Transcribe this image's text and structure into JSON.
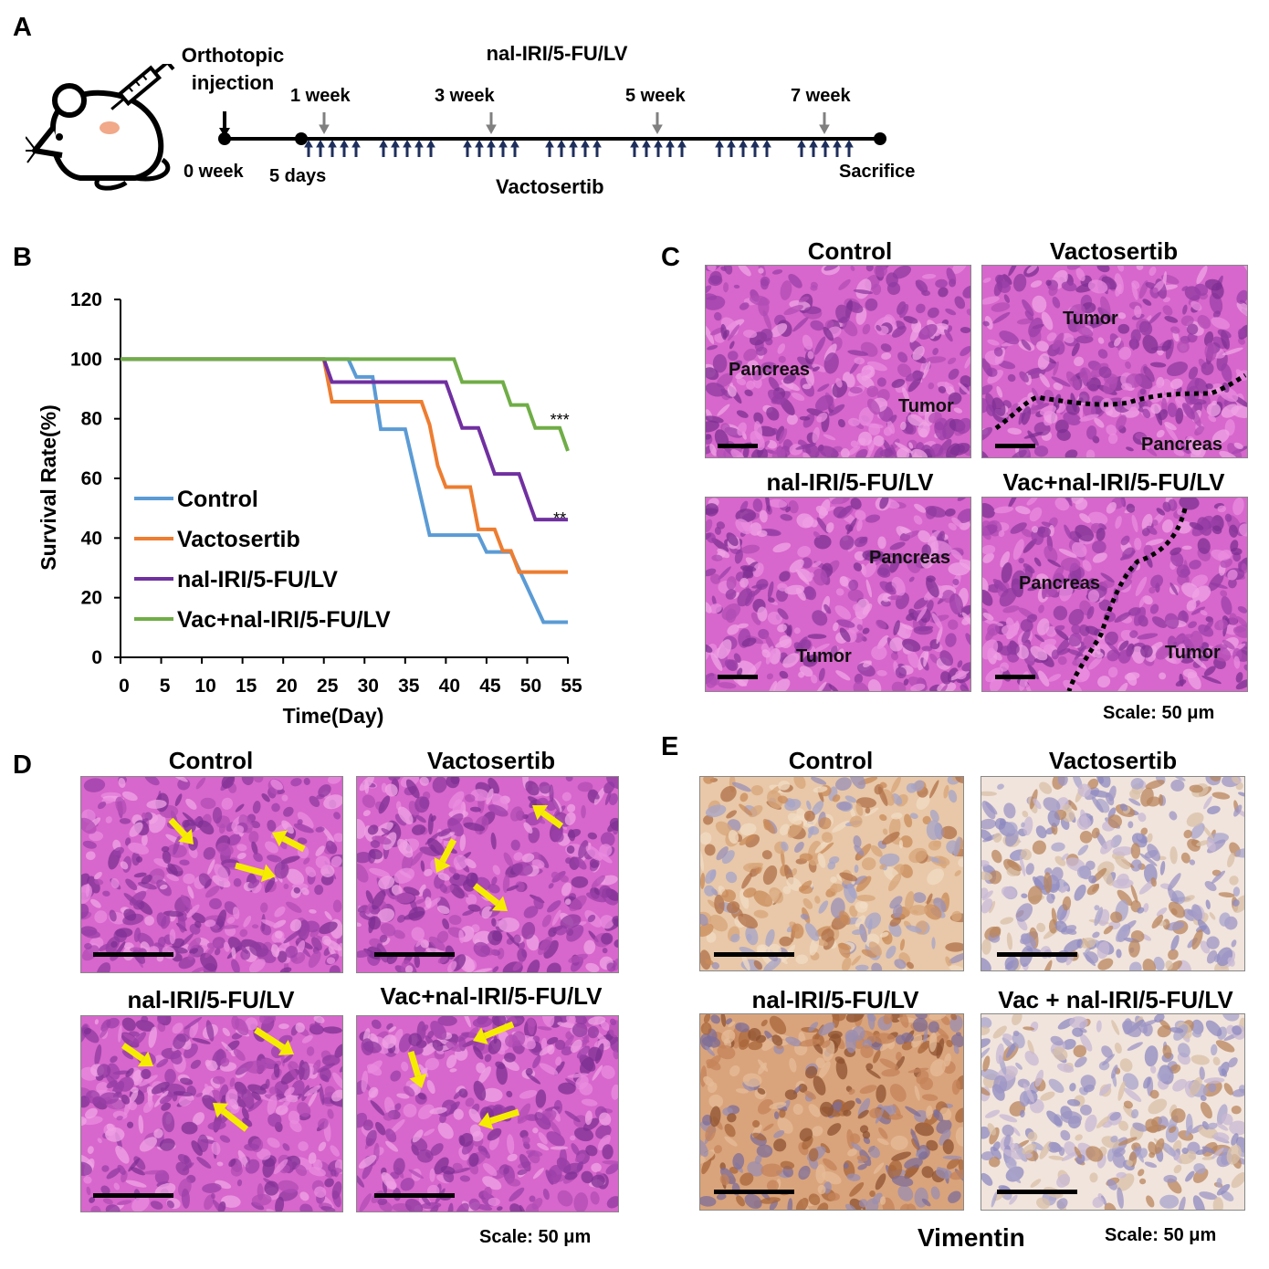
{
  "panels": {
    "A": "A",
    "B": "B",
    "C": "C",
    "D": "D",
    "E": "E"
  },
  "timeline": {
    "orthotopic_label": "Orthotopic\ninjection",
    "treatment_label": "nal-IRI/5-FU/LV",
    "week_labels": [
      "1 week",
      "3 week",
      "5 week",
      "7 week"
    ],
    "start_label": "0 week",
    "day5_label": "5 days",
    "vacto_label": "Vactosertib",
    "end_label": "Sacrifice"
  },
  "chart_data": {
    "type": "line",
    "xlabel": "Time(Day)",
    "ylabel": "Survival Rate(%)",
    "xlim": [
      0,
      55
    ],
    "ylim": [
      0,
      120
    ],
    "xticks": [
      0,
      5,
      10,
      15,
      20,
      25,
      30,
      35,
      40,
      45,
      50,
      55
    ],
    "yticks": [
      0,
      20,
      40,
      60,
      80,
      100,
      120
    ],
    "grid": false,
    "legend_position": "bottom-left",
    "series": [
      {
        "name": "Control",
        "color": "#5b9bd5",
        "x": [
          0,
          28,
          29,
          31,
          32,
          35,
          38,
          39,
          44,
          45,
          48,
          52,
          55
        ],
        "y": [
          100,
          100,
          94,
          94,
          76.5,
          76.5,
          41,
          41,
          41,
          35.3,
          35.3,
          11.8,
          11.8
        ]
      },
      {
        "name": "Vactosertib",
        "color": "#ed7d31",
        "x": [
          0,
          25,
          26,
          37,
          38,
          39,
          40,
          41,
          43,
          44,
          46,
          47,
          48,
          49,
          50,
          55
        ],
        "y": [
          100,
          100,
          85.7,
          85.7,
          78,
          64.3,
          57.1,
          57.1,
          57.1,
          42.9,
          42.9,
          35.7,
          35.7,
          28.6,
          28.6,
          28.6
        ]
      },
      {
        "name": "nal-IRI/5-FU/LV",
        "color": "#7030a0",
        "x": [
          0,
          25,
          26,
          40,
          42,
          44,
          46,
          49,
          50,
          51,
          55
        ],
        "y": [
          100,
          100,
          92.3,
          92.3,
          76.9,
          76.9,
          61.5,
          61.5,
          53.8,
          46.2,
          46.2
        ]
      },
      {
        "name": "Vac+nal-IRI/5-FU/LV",
        "color": "#70ad47",
        "x": [
          0,
          41,
          42,
          47,
          48,
          49,
          50,
          51,
          52,
          54,
          55
        ],
        "y": [
          100,
          100,
          92.3,
          92.3,
          84.6,
          84.6,
          84.6,
          76.9,
          76.9,
          76.9,
          69.2
        ]
      }
    ],
    "annotations": [
      {
        "text": "***",
        "x": 54,
        "y": 82
      },
      {
        "text": "**",
        "x": 54,
        "y": 49
      }
    ]
  },
  "panel_c": {
    "titles": [
      "Control",
      "Vactosertib",
      "nal-IRI/5-FU/LV",
      "Vac+nal-IRI/5-FU/LV"
    ],
    "labels": {
      "c1_pancreas": "Pancreas",
      "c1_tumor": "Tumor",
      "c2_tumor": "Tumor",
      "c2_pancreas": "Pancreas",
      "c3_pancreas": "Pancreas",
      "c3_tumor": "Tumor",
      "c4_pancreas": "Pancreas",
      "c4_tumor": "Tumor"
    },
    "scale": "Scale: 50 μm",
    "tissue_colors": [
      "#d35ec5",
      "#c84bbb"
    ]
  },
  "panel_d": {
    "titles": [
      "Control",
      "Vactosertib",
      "nal-IRI/5-FU/LV",
      "Vac+nal-IRI/5-FU/LV"
    ],
    "scale": "Scale: 50 μm",
    "arrow_color": "#f5ec00"
  },
  "panel_e": {
    "titles": [
      "Control",
      "Vactosertib",
      "nal-IRI/5-FU/LV",
      "Vac + nal-IRI/5-FU/LV"
    ],
    "stain_label": "Vimentin",
    "scale": "Scale: 50 μm"
  }
}
